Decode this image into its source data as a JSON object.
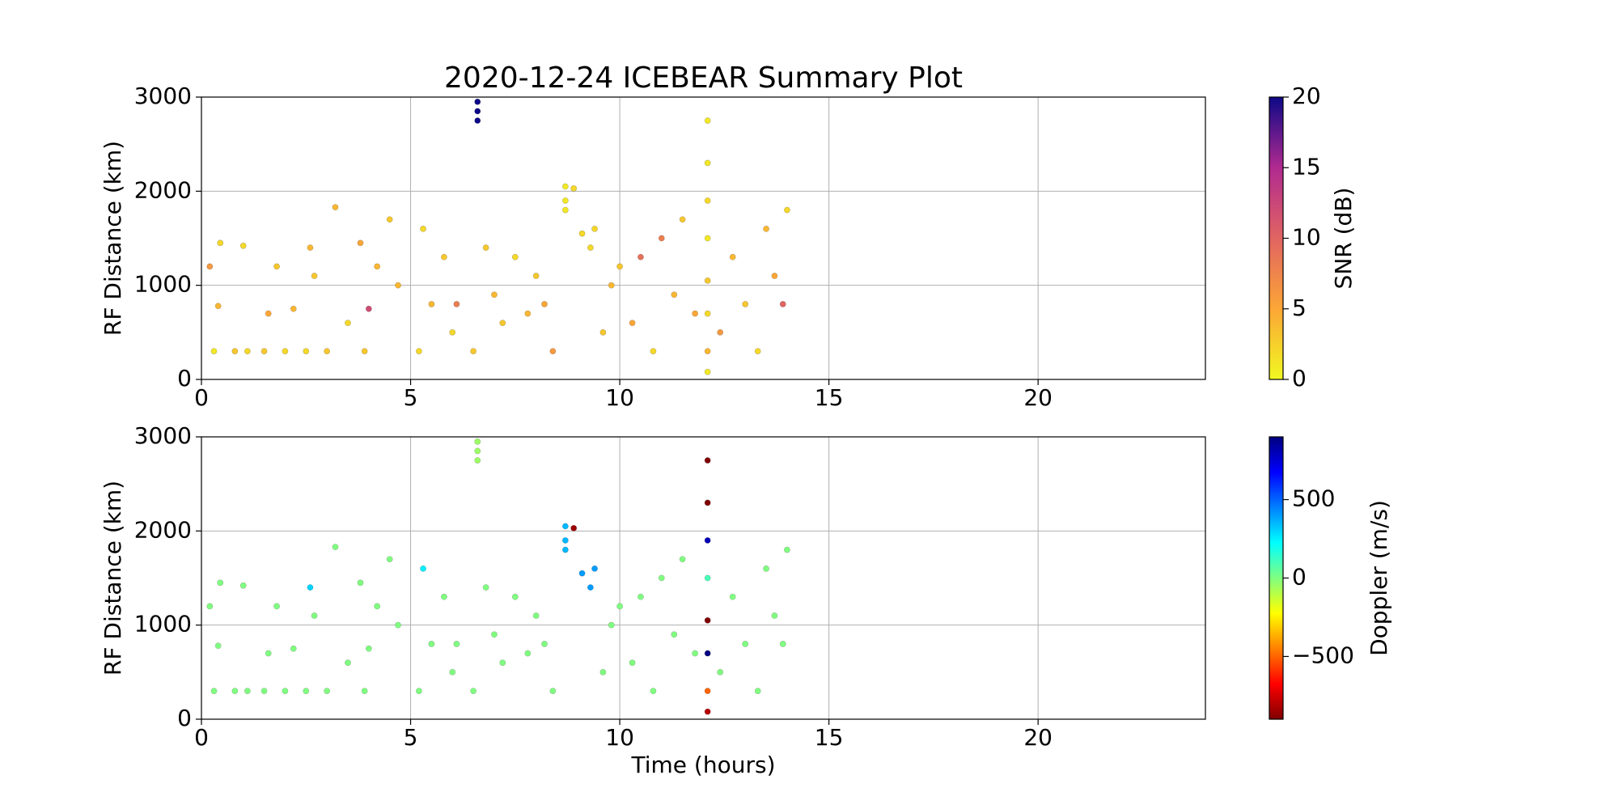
{
  "chart_data": [
    {
      "type": "scatter",
      "title": "2020-12-24 ICEBEAR Summary Plot",
      "ylabel": "RF Distance (km)",
      "xlim": [
        0,
        24
      ],
      "xticks": [
        0,
        5,
        10,
        15,
        20
      ],
      "ylim": [
        0,
        3000
      ],
      "yticks": [
        0,
        1000,
        2000,
        3000
      ],
      "grid": true,
      "colorbar_label": "SNR (dB)",
      "clim": [
        0,
        20
      ],
      "cticks": [
        0,
        5,
        10,
        15,
        20
      ],
      "colormap": [
        "#f0f921",
        "#fca636",
        "#e16462",
        "#b12a90",
        "#0d0887"
      ],
      "x": [
        0.2,
        0.3,
        0.4,
        0.45,
        0.8,
        1.0,
        1.1,
        1.5,
        1.6,
        1.8,
        2.0,
        2.2,
        2.5,
        2.6,
        2.7,
        3.0,
        3.2,
        3.5,
        3.8,
        3.9,
        4.0,
        4.2,
        4.5,
        4.7,
        5.2,
        5.3,
        5.5,
        5.8,
        6.0,
        6.1,
        6.5,
        6.6,
        6.6,
        6.6,
        6.8,
        7.0,
        7.2,
        7.5,
        7.8,
        8.0,
        8.2,
        8.4,
        8.7,
        8.7,
        8.7,
        8.9,
        9.1,
        9.3,
        9.4,
        9.6,
        9.8,
        10.0,
        10.3,
        10.5,
        10.8,
        11.0,
        11.3,
        11.5,
        11.8,
        12.1,
        12.1,
        12.1,
        12.1,
        12.1,
        12.1,
        12.1,
        12.1,
        12.4,
        12.7,
        13.0,
        13.3,
        13.5,
        13.7,
        13.9,
        14.0
      ],
      "y": [
        1200,
        300,
        780,
        1450,
        300,
        1420,
        300,
        300,
        700,
        1200,
        300,
        750,
        300,
        1400,
        1100,
        300,
        1830,
        600,
        1450,
        300,
        750,
        1200,
        1700,
        1000,
        300,
        1600,
        800,
        1300,
        500,
        800,
        300,
        2750,
        2850,
        2950,
        1400,
        900,
        600,
        1300,
        700,
        1100,
        800,
        300,
        1800,
        1900,
        2050,
        2030,
        1550,
        1400,
        1600,
        500,
        1000,
        1200,
        600,
        1300,
        300,
        1500,
        900,
        1700,
        700,
        80,
        300,
        700,
        1050,
        1500,
        1900,
        2300,
        2750,
        500,
        1300,
        800,
        300,
        1600,
        1100,
        800,
        1800
      ],
      "c": [
        6,
        1,
        4,
        2,
        3,
        2,
        2,
        3,
        5,
        3,
        2,
        4,
        2,
        4,
        3,
        3,
        4,
        2,
        5,
        3,
        12,
        4,
        3,
        4,
        2,
        2,
        4,
        3,
        2,
        8,
        3,
        20,
        20,
        20,
        3,
        4,
        3,
        2,
        4,
        3,
        5,
        6,
        1,
        1,
        1,
        2,
        2,
        2,
        2,
        3,
        4,
        3,
        5,
        9,
        2,
        8,
        4,
        3,
        5,
        1,
        4,
        2,
        3,
        1,
        2,
        1,
        1,
        6,
        4,
        3,
        2,
        4,
        5,
        10,
        2
      ]
    },
    {
      "type": "scatter",
      "ylabel": "RF Distance (km)",
      "xlabel": "Time (hours)",
      "xlim": [
        0,
        24
      ],
      "xticks": [
        0,
        5,
        10,
        15,
        20
      ],
      "ylim": [
        0,
        3000
      ],
      "yticks": [
        0,
        1000,
        2000,
        3000
      ],
      "grid": true,
      "colorbar_label": "Doppler (m/s)",
      "clim": [
        -900,
        900
      ],
      "cticks": [
        {
          "value": -500,
          "label": "−500"
        },
        0,
        500
      ],
      "colormap": [
        "#800000",
        "#ff0000",
        "#ff8000",
        "#ffff00",
        "#80ff80",
        "#00ffff",
        "#0080ff",
        "#0000ff",
        "#000080"
      ],
      "x": [
        0.2,
        0.3,
        0.4,
        0.45,
        0.8,
        1.0,
        1.1,
        1.5,
        1.6,
        1.8,
        2.0,
        2.2,
        2.5,
        2.6,
        2.7,
        3.0,
        3.2,
        3.5,
        3.8,
        3.9,
        4.0,
        4.2,
        4.5,
        4.7,
        5.2,
        5.3,
        5.5,
        5.8,
        6.0,
        6.1,
        6.5,
        6.6,
        6.6,
        6.6,
        6.8,
        7.0,
        7.2,
        7.5,
        7.8,
        8.0,
        8.2,
        8.4,
        8.7,
        8.7,
        8.7,
        8.9,
        9.1,
        9.3,
        9.4,
        9.6,
        9.8,
        10.0,
        10.3,
        10.5,
        10.8,
        11.0,
        11.3,
        11.5,
        11.8,
        12.1,
        12.1,
        12.1,
        12.1,
        12.1,
        12.1,
        12.1,
        12.1,
        12.4,
        12.7,
        13.0,
        13.3,
        13.5,
        13.7,
        13.9,
        14.0
      ],
      "y": [
        1200,
        300,
        780,
        1450,
        300,
        1420,
        300,
        300,
        700,
        1200,
        300,
        750,
        300,
        1400,
        1100,
        300,
        1830,
        600,
        1450,
        300,
        750,
        1200,
        1700,
        1000,
        300,
        1600,
        800,
        1300,
        500,
        800,
        300,
        2750,
        2850,
        2950,
        1400,
        900,
        600,
        1300,
        700,
        1100,
        800,
        300,
        1800,
        1900,
        2050,
        2030,
        1550,
        1400,
        1600,
        500,
        1000,
        1200,
        600,
        1300,
        300,
        1500,
        900,
        1700,
        700,
        80,
        300,
        700,
        1050,
        1500,
        1900,
        2300,
        2750,
        500,
        1300,
        800,
        300,
        1600,
        1100,
        800,
        1800
      ],
      "c": [
        0,
        0,
        0,
        0,
        0,
        0,
        0,
        0,
        0,
        0,
        0,
        0,
        0,
        300,
        0,
        0,
        0,
        0,
        0,
        0,
        0,
        0,
        0,
        0,
        0,
        250,
        0,
        0,
        0,
        0,
        0,
        -50,
        -50,
        -50,
        0,
        0,
        0,
        0,
        0,
        0,
        0,
        0,
        350,
        350,
        350,
        -850,
        400,
        400,
        400,
        0,
        0,
        0,
        0,
        0,
        0,
        0,
        0,
        0,
        0,
        -800,
        -500,
        900,
        -900,
        100,
        800,
        -900,
        -900,
        0,
        0,
        0,
        0,
        0,
        0,
        0,
        0
      ]
    }
  ]
}
